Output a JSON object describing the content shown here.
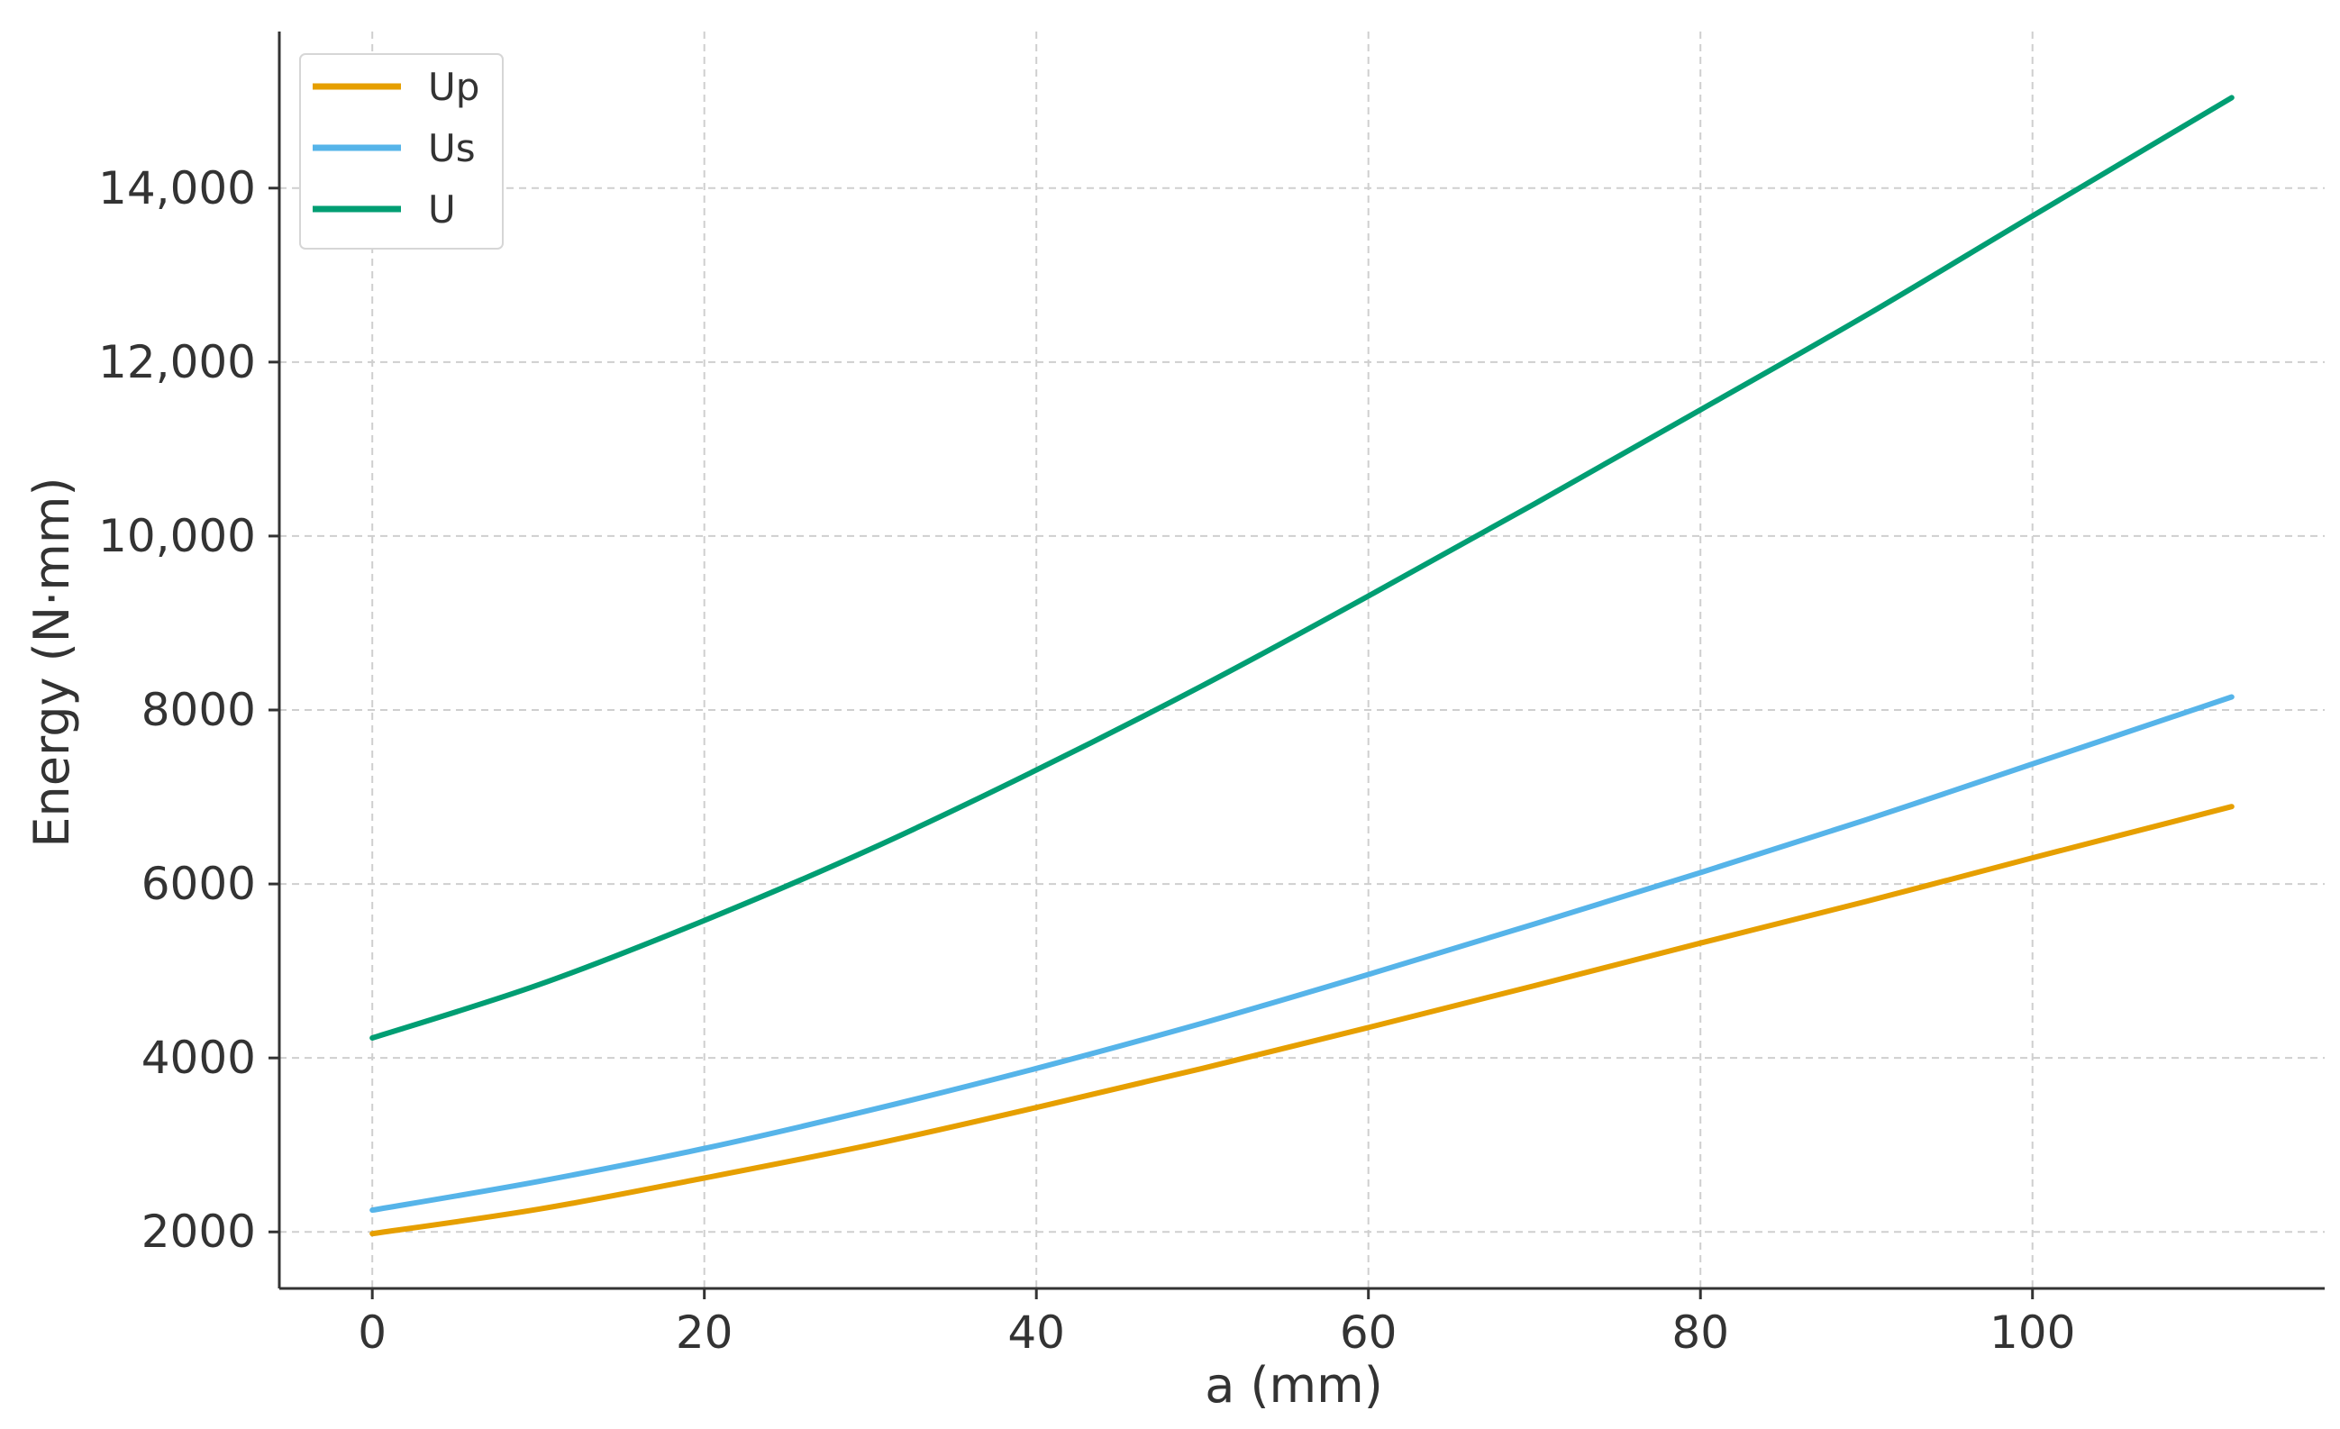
{
  "chart_data": {
    "type": "line",
    "xlabel": "a (mm)",
    "ylabel": "Energy (N·mm)",
    "xlim": [
      -5.6,
      117.6
    ],
    "ylim": [
      1350,
      15800
    ],
    "xticks": [
      0,
      20,
      40,
      60,
      80,
      100
    ],
    "xtick_labels": [
      "0",
      "20",
      "40",
      "60",
      "80",
      "100"
    ],
    "yticks": [
      2000,
      4000,
      6000,
      8000,
      10000,
      12000,
      14000
    ],
    "ytick_labels": [
      "2000",
      "4000",
      "6000",
      "8000",
      "10,000",
      "12,000",
      "14,000"
    ],
    "grid": true,
    "legend_position": "top-left",
    "x": [
      0,
      10,
      20,
      30,
      40,
      50,
      60,
      70,
      80,
      90,
      100,
      112
    ],
    "series": [
      {
        "name": "Up",
        "color": "#E69F00",
        "values": [
          1980,
          2260,
          2620,
          3000,
          3430,
          3880,
          4350,
          4830,
          5320,
          5800,
          6300,
          6890
        ]
      },
      {
        "name": "Us",
        "color": "#56B4E9",
        "values": [
          2250,
          2580,
          2960,
          3400,
          3880,
          4400,
          4960,
          5540,
          6130,
          6740,
          7380,
          8150
        ]
      },
      {
        "name": "U",
        "color": "#009E73",
        "values": [
          4230,
          4840,
          5580,
          6400,
          7310,
          8280,
          9310,
          10370,
          11450,
          12540,
          13680,
          15040
        ]
      }
    ]
  }
}
